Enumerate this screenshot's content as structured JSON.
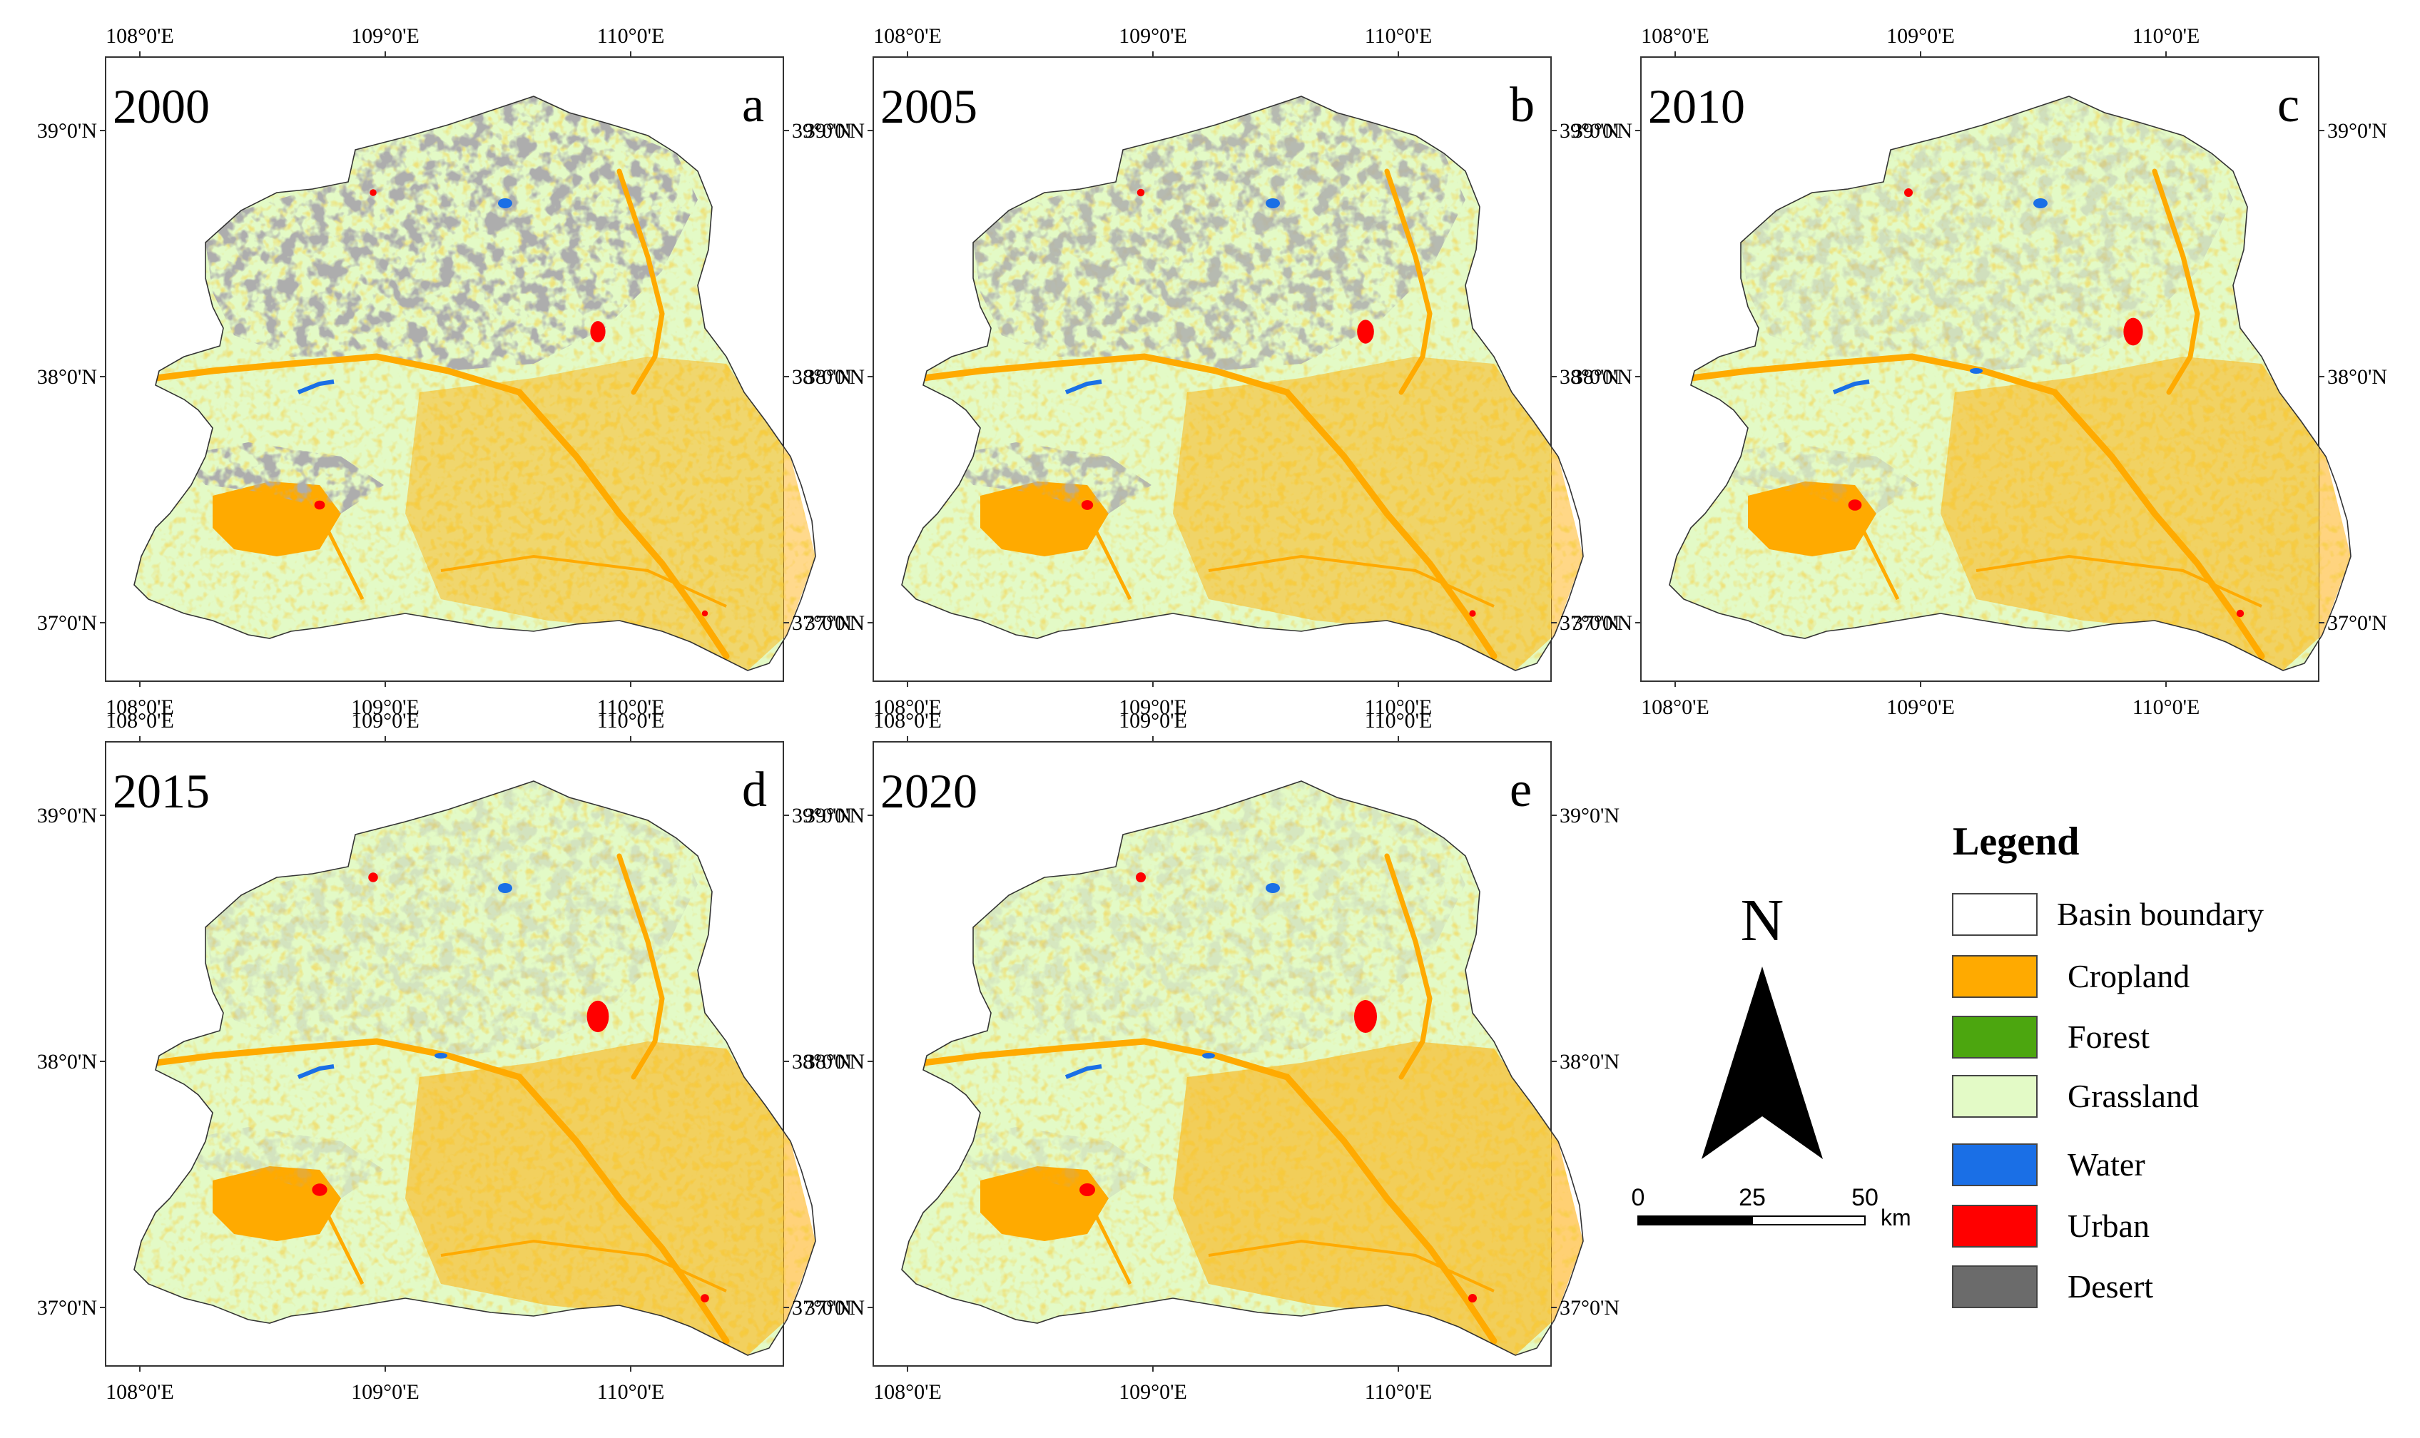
{
  "panels": [
    {
      "year": "2000",
      "letter": "a",
      "desert": 1.0,
      "urban": 0.55
    },
    {
      "year": "2005",
      "letter": "b",
      "desert": 0.82,
      "urban": 0.65
    },
    {
      "year": "2010",
      "letter": "c",
      "desert": 0.35,
      "urban": 0.8
    },
    {
      "year": "2015",
      "letter": "d",
      "desert": 0.3,
      "urban": 0.95
    },
    {
      "year": "2020",
      "letter": "e",
      "desert": 0.25,
      "urban": 1.0
    }
  ],
  "axes": {
    "lon_labels": [
      "108°0'E",
      "109°0'E",
      "110°0'E"
    ],
    "lat_labels": [
      "39°0'N",
      "38°0'N",
      "37°0'N"
    ]
  },
  "north_arrow": {
    "letter": "N"
  },
  "scale_bar": {
    "ticks": [
      "0",
      "25",
      "50"
    ],
    "unit": "km"
  },
  "legend": {
    "title": "Legend",
    "items": [
      {
        "label": "Basin boundary",
        "color": "#ffffff"
      },
      {
        "label": "Cropland",
        "color": "#ffaa00"
      },
      {
        "label": "Forest",
        "color": "#4ca60f"
      },
      {
        "label": "Grassland",
        "color": "#e3fac6"
      },
      {
        "label": "Water",
        "color": "#1a6fe6"
      },
      {
        "label": "Urban",
        "color": "#ff0000"
      },
      {
        "label": "Desert",
        "color": "#6b6b6b"
      }
    ]
  }
}
